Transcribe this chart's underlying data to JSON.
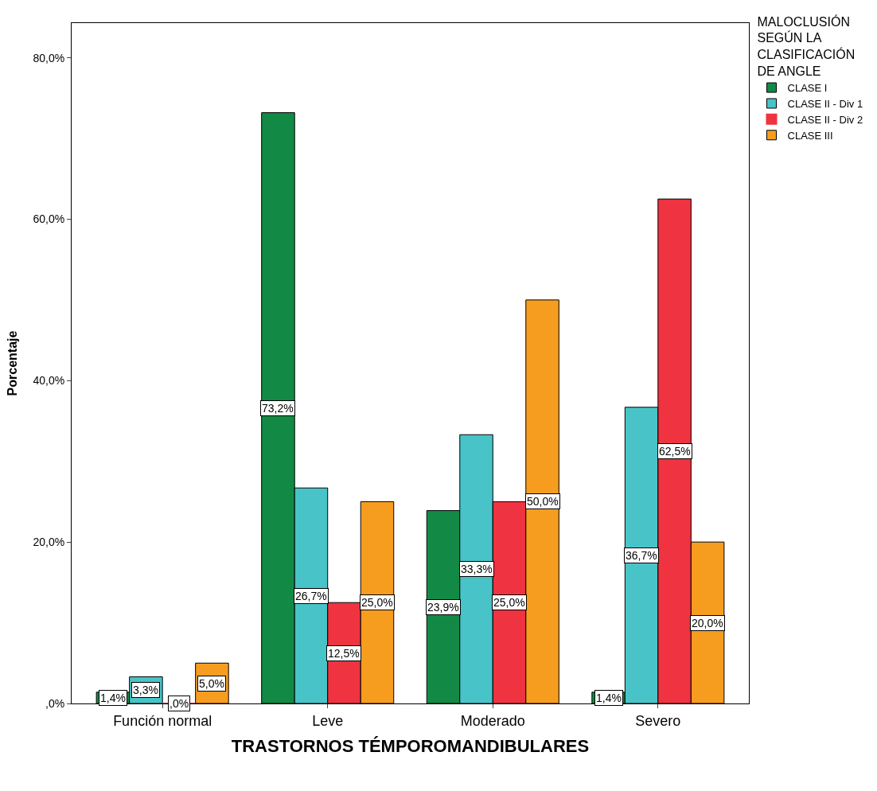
{
  "chart_data": {
    "type": "bar",
    "xlabel": "TRASTORNOS TÉMPOROMANDIBULARES",
    "ylabel": "Porcentaje",
    "legend_title": "MALOCLUSIÓN SEGÚN LA CLASIFICACIÓN DE ANGLE",
    "categories": [
      "Función normal",
      "Leve",
      "Moderado",
      "Severo"
    ],
    "series": [
      {
        "name": "CLASE I",
        "color": "#128a45",
        "values": [
          1.4,
          73.2,
          23.9,
          1.4
        ],
        "value_labels": [
          "1,4%",
          "73,2%",
          "23,9%",
          "1,4%"
        ]
      },
      {
        "name": "CLASE II - Div 1",
        "color": "#48c4c8",
        "values": [
          3.3,
          26.7,
          33.3,
          36.7
        ],
        "value_labels": [
          "3,3%",
          "26,7%",
          "33,3%",
          "36,7%"
        ]
      },
      {
        "name": "CLASE II - Div 2",
        "color": "#ef3340",
        "values": [
          0,
          12.5,
          25.0,
          62.5
        ],
        "value_labels": [
          ",0%",
          "12,5%",
          "25,0%",
          "62,5%"
        ]
      },
      {
        "name": "CLASE III",
        "color": "#f69d1f",
        "values": [
          5.0,
          25.0,
          50.0,
          20.0
        ],
        "value_labels": [
          "5,0%",
          "25,0%",
          "50,0%",
          "20,0%"
        ]
      }
    ],
    "ylim": [
      0,
      84.3
    ],
    "yticks": [
      {
        "value": 0,
        "label": ",0%"
      },
      {
        "value": 20,
        "label": "20,0%"
      },
      {
        "value": 40,
        "label": "40,0%"
      },
      {
        "value": 60,
        "label": "60,0%"
      },
      {
        "value": 80,
        "label": "80,0%"
      }
    ],
    "legend": "top right"
  }
}
